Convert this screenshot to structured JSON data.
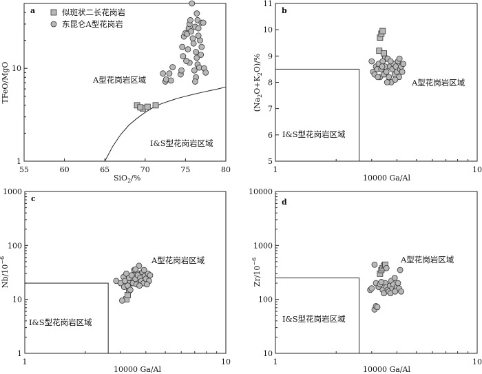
{
  "legend": {
    "square_label": "似斑状二长花岗岩",
    "circle_label": "东昆仑A型花岗岩"
  },
  "chart_data": [
    {
      "id": "a",
      "type": "scatter",
      "panel_label": "a",
      "xlabel_main": "SiO",
      "xlabel_sub": "2",
      "xlabel_tail": "/%",
      "ylabel": "TFeO/MgO",
      "xlim": [
        55,
        80
      ],
      "ylim": [
        1,
        50
      ],
      "yscale": "log",
      "xticks": [
        55,
        60,
        65,
        70,
        75,
        80
      ],
      "yticks": [
        1,
        10
      ],
      "yminor": [
        2,
        3,
        4,
        5,
        6,
        7,
        8,
        9,
        20,
        30,
        40,
        50
      ],
      "region_labels": {
        "a_type": "A型花岗岩区域",
        "is_type": "I&S型花岗岩区域"
      },
      "boundary": [
        [
          65,
          1
        ],
        [
          66,
          1.45
        ],
        [
          67,
          1.95
        ],
        [
          68,
          2.45
        ],
        [
          69,
          2.9
        ],
        [
          70,
          3.35
        ],
        [
          71,
          3.8
        ],
        [
          72,
          4.15
        ],
        [
          73,
          4.45
        ],
        [
          74,
          4.75
        ],
        [
          75,
          5.0
        ],
        [
          76,
          5.25
        ],
        [
          77,
          5.5
        ],
        [
          78,
          5.75
        ],
        [
          79,
          6.0
        ],
        [
          80,
          6.3
        ]
      ],
      "series": [
        {
          "marker": "square",
          "points": [
            [
              69.0,
              4.0
            ],
            [
              69.7,
              3.7
            ],
            [
              70.3,
              3.85
            ],
            [
              71.3,
              4.0
            ],
            [
              69.4,
              3.8
            ]
          ]
        },
        {
          "marker": "circle",
          "points": [
            [
              72.5,
              7.2
            ],
            [
              72.2,
              8.8
            ],
            [
              73.0,
              8.8
            ],
            [
              73.4,
              10.3
            ],
            [
              72.6,
              7.6
            ],
            [
              73.2,
              7.4
            ],
            [
              74.4,
              8.6
            ],
            [
              74.5,
              9.5
            ],
            [
              74.7,
              13.5
            ],
            [
              74.6,
              17.0
            ],
            [
              74.8,
              22.0
            ],
            [
              75.0,
              24.0
            ],
            [
              75.2,
              23.5
            ],
            [
              75.4,
              27.0
            ],
            [
              75.5,
              30.0
            ],
            [
              75.3,
              16.0
            ],
            [
              75.6,
              33.0
            ],
            [
              75.8,
              50.0
            ],
            [
              75.7,
              25.0
            ],
            [
              75.9,
              21.0
            ],
            [
              76.0,
              18.5
            ],
            [
              75.5,
              11.5
            ],
            [
              76.1,
              9.5
            ],
            [
              76.2,
              28.0
            ],
            [
              76.4,
              39.0
            ],
            [
              76.5,
              33.0
            ],
            [
              76.6,
              27.0
            ],
            [
              76.3,
              15.0
            ],
            [
              76.4,
              13.0
            ],
            [
              76.5,
              11.0
            ],
            [
              76.7,
              10.2
            ],
            [
              76.3,
              8.0
            ],
            [
              76.2,
              7.2
            ],
            [
              76.8,
              20.0
            ],
            [
              77.0,
              17.0
            ],
            [
              77.0,
              31.0
            ],
            [
              77.2,
              31.0
            ],
            [
              77.3,
              10.0
            ],
            [
              77.5,
              9.0
            ],
            [
              76.9,
              14.0
            ],
            [
              76.6,
              22.5
            ],
            [
              75.1,
              12.0
            ]
          ]
        }
      ]
    },
    {
      "id": "b",
      "type": "scatter",
      "panel_label": "b",
      "xlabel": "10000 Ga/Al",
      "ylabel_parts": [
        "(Na",
        "2",
        "O+K",
        "2",
        "O)/%"
      ],
      "xlim": [
        1,
        10
      ],
      "xscale": "log",
      "ylim": [
        5,
        11
      ],
      "xticks": [
        1,
        10
      ],
      "yticks": [
        5,
        6,
        7,
        8,
        9,
        10,
        11
      ],
      "region_labels": {
        "a_type": "A型花岗岩区域",
        "is_type": "I&S型花岗岩区域"
      },
      "box": {
        "x_max": 2.6,
        "y_max": 8.5
      },
      "series": [
        {
          "marker": "square",
          "points": [
            [
              3.27,
              9.2
            ],
            [
              3.3,
              9.7
            ],
            [
              3.35,
              9.85
            ],
            [
              3.4,
              9.95
            ],
            [
              3.45,
              9.1
            ],
            [
              3.5,
              8.9
            ]
          ]
        },
        {
          "marker": "circle",
          "points": [
            [
              3.0,
              8.8
            ],
            [
              3.05,
              8.4
            ],
            [
              3.1,
              8.3
            ],
            [
              3.15,
              8.6
            ],
            [
              3.2,
              8.5
            ],
            [
              3.25,
              8.7
            ],
            [
              3.3,
              8.2
            ],
            [
              3.35,
              8.5
            ],
            [
              3.4,
              8.8
            ],
            [
              3.45,
              8.3
            ],
            [
              3.5,
              8.6
            ],
            [
              3.55,
              8.4
            ],
            [
              3.6,
              8.9
            ],
            [
              3.65,
              8.2
            ],
            [
              3.7,
              8.6
            ],
            [
              3.75,
              8.0
            ],
            [
              3.8,
              8.5
            ],
            [
              3.85,
              8.7
            ],
            [
              3.9,
              8.3
            ],
            [
              3.95,
              8.6
            ],
            [
              4.0,
              8.4
            ],
            [
              4.05,
              8.8
            ],
            [
              4.1,
              8.2
            ],
            [
              4.15,
              8.5
            ],
            [
              4.2,
              8.6
            ],
            [
              4.25,
              8.4
            ],
            [
              4.3,
              8.7
            ],
            [
              3.22,
              8.2
            ],
            [
              3.58,
              8.0
            ],
            [
              3.72,
              8.8
            ],
            [
              3.92,
              8.1
            ],
            [
              4.12,
              8.9
            ],
            [
              3.38,
              8.6
            ]
          ]
        }
      ]
    },
    {
      "id": "c",
      "type": "scatter",
      "panel_label": "c",
      "xlabel": "10000 Ga/Al",
      "ylabel_main": "Nb/10",
      "ylabel_sup": "−6",
      "xlim": [
        1,
        10
      ],
      "xscale": "log",
      "ylim": [
        1,
        1000
      ],
      "yscale": "log",
      "xticks": [
        1,
        10
      ],
      "yticks": [
        1,
        10,
        100,
        1000
      ],
      "region_labels": {
        "a_type": "A型花岗岩区域",
        "is_type": "I&S型花岗岩区域"
      },
      "box": {
        "x_max": 2.6,
        "y_max": 20
      },
      "series": [
        {
          "marker": "square",
          "points": [
            [
              3.2,
              10.0
            ],
            [
              3.25,
              12.0
            ],
            [
              3.3,
              15.0
            ],
            [
              3.35,
              20.0
            ],
            [
              3.45,
              25.0
            ],
            [
              3.6,
              30.0
            ],
            [
              3.7,
              22.0
            ]
          ]
        },
        {
          "marker": "circle",
          "points": [
            [
              2.85,
              22.0
            ],
            [
              3.0,
              20.0
            ],
            [
              3.05,
              9.5
            ],
            [
              3.1,
              26.0
            ],
            [
              3.12,
              17.0
            ],
            [
              3.15,
              22.0
            ],
            [
              3.2,
              30.0
            ],
            [
              3.25,
              18.0
            ],
            [
              3.3,
              25.0
            ],
            [
              3.4,
              28.0
            ],
            [
              3.45,
              20.0
            ],
            [
              3.5,
              35.0
            ],
            [
              3.55,
              24.0
            ],
            [
              3.6,
              19.0
            ],
            [
              3.65,
              28.0
            ],
            [
              3.7,
              42.0
            ],
            [
              3.75,
              25.0
            ],
            [
              3.8,
              22.0
            ],
            [
              3.85,
              32.0
            ],
            [
              3.9,
              20.0
            ],
            [
              3.95,
              27.0
            ],
            [
              4.0,
              24.0
            ],
            [
              4.1,
              30.0
            ],
            [
              4.15,
              22.0
            ],
            [
              4.2,
              28.0
            ],
            [
              3.35,
              15.0
            ],
            [
              3.55,
              36.0
            ],
            [
              3.72,
              18.0
            ],
            [
              3.92,
              35.0
            ],
            [
              4.05,
              19.0
            ]
          ]
        }
      ]
    },
    {
      "id": "d",
      "type": "scatter",
      "panel_label": "d",
      "xlabel": "10000 Ga/Al",
      "ylabel_main": "Zr/10",
      "ylabel_sup": "−6",
      "xlim": [
        1,
        10
      ],
      "xscale": "log",
      "ylim": [
        10,
        10000
      ],
      "yscale": "log",
      "xticks": [
        1,
        10
      ],
      "yticks": [
        10,
        100,
        1000,
        10000
      ],
      "region_labels": {
        "a_type": "A型花岗岩区域",
        "is_type": "I&S型花岗岩区域"
      },
      "box": {
        "x_max": 2.6,
        "y_max": 250
      },
      "series": [
        {
          "marker": "square",
          "points": [
            [
              3.3,
              300.0
            ],
            [
              3.35,
              350.0
            ],
            [
              3.4,
              380.0
            ],
            [
              3.45,
              420.0
            ],
            [
              3.5,
              440.0
            ],
            [
              3.25,
              180.0
            ]
          ]
        },
        {
          "marker": "circle",
          "points": [
            [
              2.95,
              150.0
            ],
            [
              3.0,
              160.0
            ],
            [
              3.1,
              65.0
            ],
            [
              3.15,
              75.0
            ],
            [
              3.2,
              72.0
            ],
            [
              3.1,
              440.0
            ],
            [
              3.15,
              200.0
            ],
            [
              3.25,
              170.0
            ],
            [
              3.3,
              190.0
            ],
            [
              3.4,
              150.0
            ],
            [
              3.45,
              130.0
            ],
            [
              3.5,
              200.0
            ],
            [
              3.55,
              170.0
            ],
            [
              3.6,
              150.0
            ],
            [
              3.65,
              140.0
            ],
            [
              3.7,
              180.0
            ],
            [
              3.75,
              220.0
            ],
            [
              3.8,
              160.0
            ],
            [
              3.85,
              190.0
            ],
            [
              3.9,
              250.0
            ],
            [
              3.95,
              150.0
            ],
            [
              4.0,
              170.0
            ],
            [
              4.05,
              200.0
            ],
            [
              4.1,
              160.0
            ],
            [
              4.15,
              350.0
            ],
            [
              3.55,
              380.0
            ],
            [
              4.2,
              140.0
            ],
            [
              3.35,
              210.0
            ],
            [
              3.72,
              130.0
            ],
            [
              3.92,
              140.0
            ]
          ]
        }
      ]
    }
  ]
}
